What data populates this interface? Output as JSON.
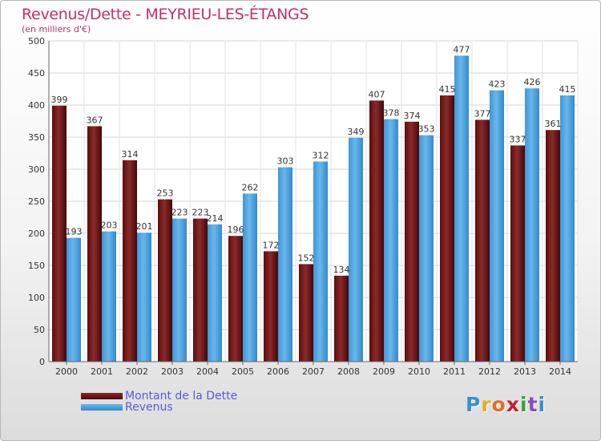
{
  "title": "Revenus/Dette - MEYRIEU-LES-ÉTANGS",
  "subtitle": "(en milliers d'€)",
  "colors": {
    "title": "#c0306a",
    "debt_top": "#8a2a2a",
    "debt_bottom": "#4a0606",
    "revenue_top": "#6ab6ea",
    "revenue_bottom": "#2f8bd0",
    "legend_text": "#5a5ae0"
  },
  "chart_data": {
    "type": "bar",
    "categories": [
      "2000",
      "2001",
      "2002",
      "2003",
      "2004",
      "2005",
      "2006",
      "2007",
      "2008",
      "2009",
      "2010",
      "2011",
      "2012",
      "2013",
      "2014"
    ],
    "series": [
      {
        "name": "Montant de la Dette",
        "values": [
          399,
          367,
          314,
          253,
          223,
          196,
          172,
          152,
          134,
          407,
          374,
          415,
          377,
          337,
          361
        ]
      },
      {
        "name": "Revenus",
        "values": [
          193,
          203,
          201,
          223,
          214,
          262,
          303,
          312,
          349,
          378,
          353,
          477,
          423,
          426,
          415
        ]
      }
    ],
    "ylim": [
      0,
      500
    ],
    "yticks": [
      0,
      50,
      100,
      150,
      200,
      250,
      300,
      350,
      400,
      450,
      500
    ],
    "grid": true,
    "legend_position": "bottom-left",
    "data_labels": true
  },
  "legend": {
    "debt_label": "Montant de la Dette",
    "revenue_label": "Revenus"
  },
  "logo": {
    "letters": [
      "P",
      "r",
      "o",
      "x",
      "i",
      "t",
      "i"
    ],
    "colors": [
      "#3a8fd0",
      "#e0b020",
      "#e07020",
      "#c02030",
      "#3aa040",
      "#8a4ac0",
      "#3a8fd0"
    ]
  }
}
